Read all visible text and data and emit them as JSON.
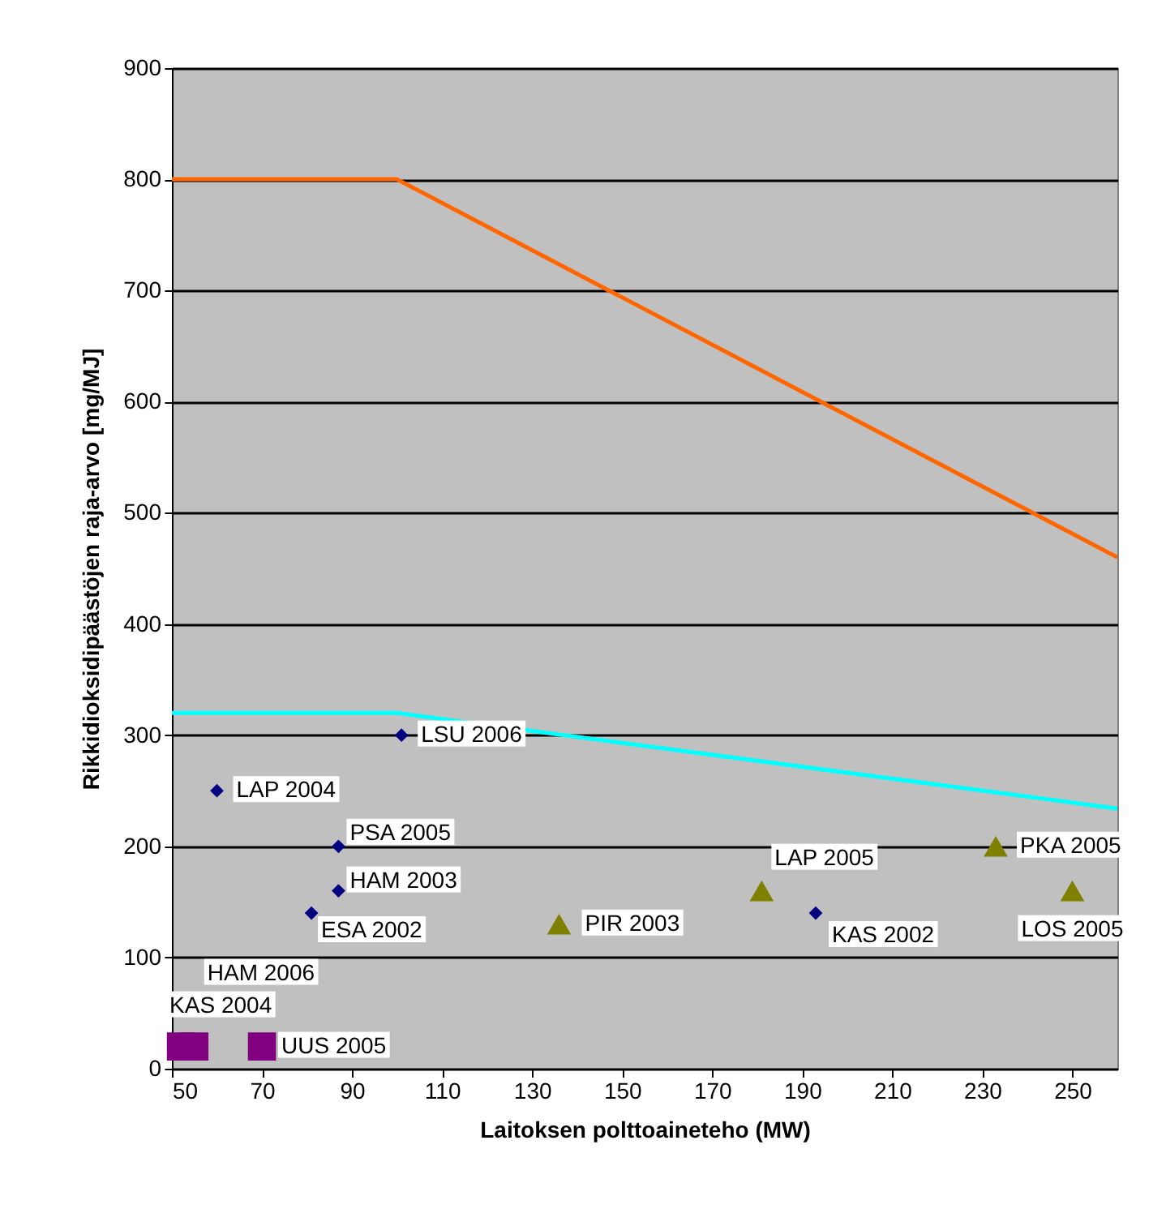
{
  "chart_data": {
    "type": "scatter",
    "xlabel": "Laitoksen polttoaineteho (MW)",
    "ylabel": "Rikkidioksidipäästöjen raja-arvo [mg/MJ]",
    "xlim": [
      50,
      260
    ],
    "xticks": [
      50,
      70,
      90,
      110,
      130,
      150,
      170,
      190,
      210,
      230,
      250
    ],
    "ylim": [
      0,
      900
    ],
    "yticks": [
      0,
      100,
      200,
      300,
      400,
      500,
      600,
      700,
      800,
      900
    ],
    "grid": "y",
    "series": [
      {
        "type": "line",
        "color": "#ff6600",
        "x": [
          50,
          100,
          260
        ],
        "values": [
          800,
          800,
          460
        ]
      },
      {
        "type": "line",
        "color": "#00ffff",
        "x": [
          50,
          100,
          260
        ],
        "values": [
          320,
          320,
          234
        ]
      },
      {
        "marker": "diamond",
        "color": "#000080",
        "x": [
          60,
          101,
          87,
          87,
          81,
          193
        ],
        "values": [
          250,
          300,
          200,
          160,
          140,
          140
        ]
      },
      {
        "marker": "triangle",
        "color": "#808000",
        "x": [
          136,
          181,
          233,
          250
        ],
        "values": [
          130,
          160,
          200,
          160
        ]
      },
      {
        "marker": "square",
        "color": "#800080",
        "x": [
          52,
          55,
          70
        ],
        "values": [
          20,
          20,
          20
        ]
      }
    ],
    "annotations": [
      {
        "text": "LAP 2004",
        "x": 60,
        "y": 250
      },
      {
        "text": "LSU 2006",
        "x": 101,
        "y": 300
      },
      {
        "text": "PSA 2005",
        "x": 87,
        "y": 200
      },
      {
        "text": "HAM 2003",
        "x": 87,
        "y": 160
      },
      {
        "text": "ESA 2002",
        "x": 81,
        "y": 140
      },
      {
        "text": "KAS 2002",
        "x": 193,
        "y": 140
      },
      {
        "text": "PIR 2003",
        "x": 136,
        "y": 130
      },
      {
        "text": "LAP 2005",
        "x": 181,
        "y": 160
      },
      {
        "text": "PKA 2005",
        "x": 233,
        "y": 200
      },
      {
        "text": "LOS 2005",
        "x": 250,
        "y": 160
      },
      {
        "text": "KAS 2004",
        "x": 52,
        "y": 20
      },
      {
        "text": "HAM 2006",
        "x": 55,
        "y": 20
      },
      {
        "text": "UUS 2005",
        "x": 70,
        "y": 20
      }
    ]
  }
}
